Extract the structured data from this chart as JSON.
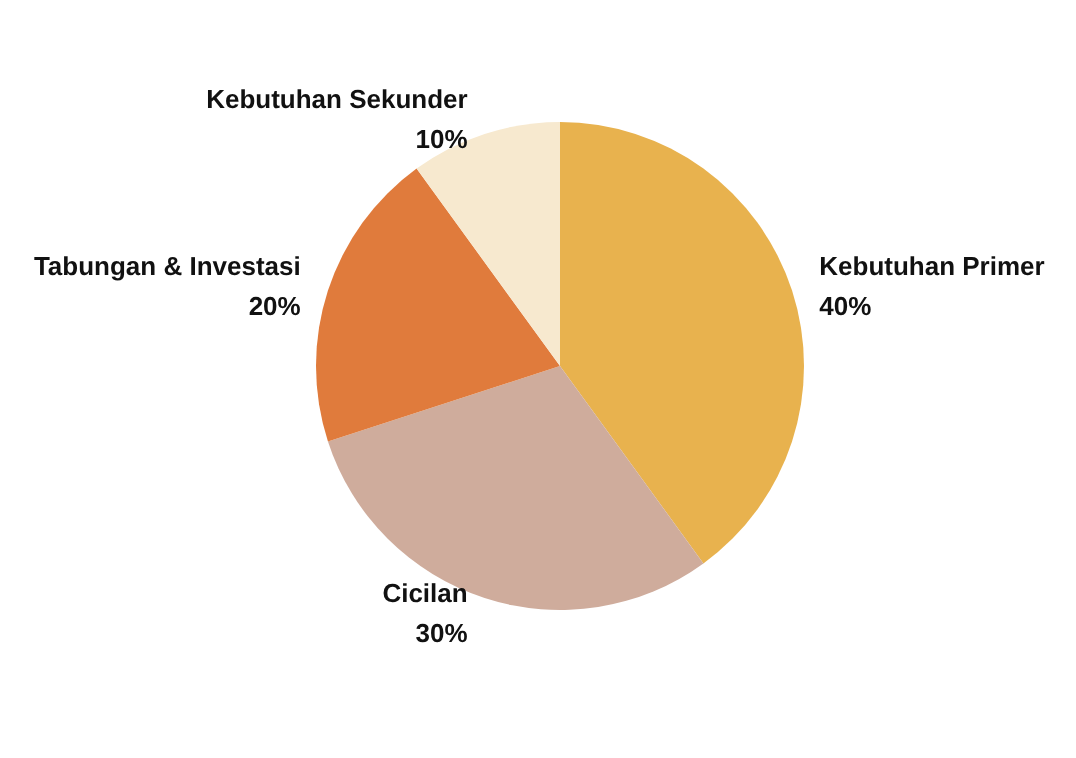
{
  "chart_data": {
    "type": "pie",
    "categories": [
      "Kebutuhan Primer",
      "Cicilan",
      "Tabungan & Investasi",
      "Kebutuhan Sekunder"
    ],
    "values": [
      40,
      30,
      20,
      10
    ],
    "value_labels": [
      "40%",
      "30%",
      "20%",
      "10%"
    ],
    "colors": [
      "#e8b24e",
      "#cfac9c",
      "#e07b3c",
      "#f7e9cf"
    ],
    "legend": false
  }
}
